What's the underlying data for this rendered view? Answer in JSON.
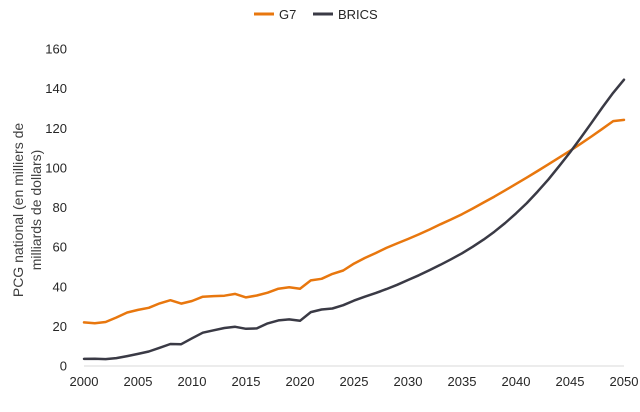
{
  "chart_data": {
    "type": "line",
    "title": "",
    "ylabel_lines": [
      "PCG national (en milliers de",
      "milliards de dollars)"
    ],
    "xlabel": "",
    "xlim": [
      2000,
      2050
    ],
    "ylim": [
      0,
      160
    ],
    "x_ticks": [
      "2000",
      "2005",
      "2010",
      "2015",
      "2020",
      "2025",
      "2030",
      "2035",
      "2040",
      "2045",
      "2050"
    ],
    "y_ticks": [
      "0",
      "20",
      "40",
      "60",
      "80",
      "100",
      "120",
      "140",
      "160"
    ],
    "grid": false,
    "legend_position": "top-center",
    "x": [
      2000,
      2001,
      2002,
      2003,
      2004,
      2005,
      2006,
      2007,
      2008,
      2009,
      2010,
      2011,
      2012,
      2013,
      2014,
      2015,
      2016,
      2017,
      2018,
      2019,
      2020,
      2021,
      2022,
      2023,
      2024,
      2025,
      2026,
      2027,
      2028,
      2029,
      2030,
      2031,
      2032,
      2033,
      2034,
      2035,
      2036,
      2037,
      2038,
      2039,
      2040,
      2041,
      2042,
      2043,
      2044,
      2045,
      2046,
      2047,
      2048,
      2049,
      2050
    ],
    "series": [
      {
        "name": "G7",
        "color": "#E8770E",
        "values": [
          22,
          21.6,
          22.2,
          24.5,
          27,
          28.3,
          29.4,
          31.6,
          33.2,
          31.5,
          32.8,
          35,
          35.3,
          35.5,
          36.4,
          34.6,
          35.6,
          37,
          39,
          39.7,
          39,
          43.2,
          44,
          46.5,
          48.2,
          51.7,
          54.5,
          57,
          59.6,
          61.9,
          64.1,
          66.4,
          68.9,
          71.5,
          74,
          76.6,
          79.5,
          82.5,
          85.5,
          88.7,
          91.9,
          95.1,
          98.4,
          101.8,
          105.2,
          108.6,
          112.2,
          115.9,
          119.7,
          123.6,
          124.2
        ]
      },
      {
        "name": "BRICS",
        "color": "#3A3A45",
        "values": [
          3.6,
          3.7,
          3.5,
          4,
          5,
          6.1,
          7.3,
          9.2,
          11.1,
          11,
          14,
          16.8,
          18,
          19.2,
          19.8,
          18.8,
          19,
          21.5,
          23,
          23.5,
          22.8,
          27.2,
          28.5,
          29,
          30.7,
          33,
          35,
          36.8,
          38.8,
          41,
          43.4,
          45.8,
          48.4,
          51.1,
          53.9,
          56.9,
          60.2,
          63.8,
          67.8,
          72.2,
          77,
          82.2,
          88,
          94.2,
          100.9,
          107.8,
          115.2,
          122.8,
          130.5,
          137.9,
          144.5
        ]
      }
    ]
  }
}
